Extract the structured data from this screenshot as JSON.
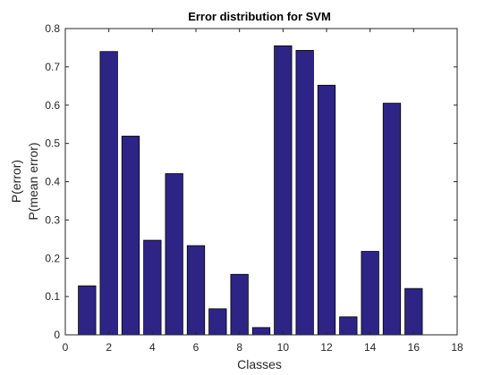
{
  "chart_data": {
    "type": "bar",
    "title": "Error distribution for SVM",
    "xlabel": "Classes",
    "ylabel_lines": [
      "P(error)",
      "P(mean error)"
    ],
    "x": [
      1,
      2,
      3,
      4,
      5,
      6,
      7,
      8,
      9,
      10,
      11,
      12,
      13,
      14,
      15,
      16
    ],
    "values": [
      0.128,
      0.74,
      0.519,
      0.247,
      0.421,
      0.233,
      0.068,
      0.158,
      0.019,
      0.755,
      0.743,
      0.652,
      0.047,
      0.218,
      0.605,
      0.121
    ],
    "xlim": [
      0,
      18
    ],
    "ylim": [
      0,
      0.8
    ],
    "xticks": [
      0,
      2,
      4,
      6,
      8,
      10,
      12,
      14,
      16,
      18
    ],
    "yticks": [
      0,
      0.1,
      0.2,
      0.3,
      0.4,
      0.5,
      0.6,
      0.7,
      0.8
    ],
    "grid": false,
    "bar_color": "#2e2486"
  }
}
